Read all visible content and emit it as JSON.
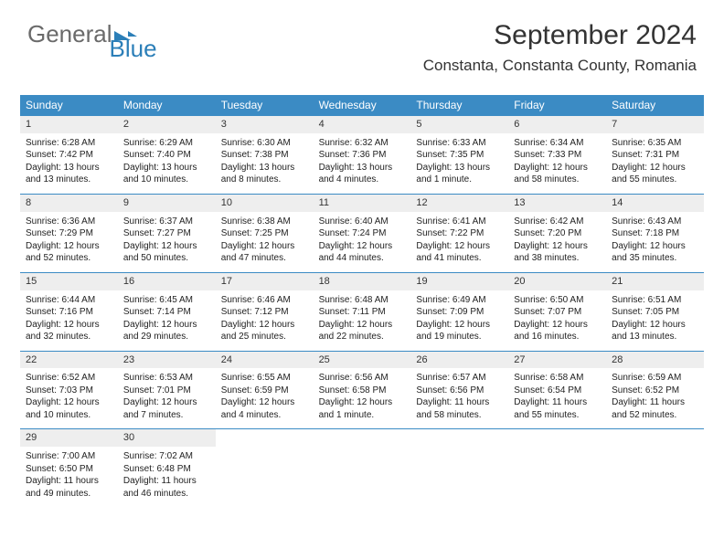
{
  "logo": {
    "text1": "General",
    "text2": "Blue"
  },
  "title": "September 2024",
  "location": "Constanta, Constanta County, Romania",
  "headers": [
    "Sunday",
    "Monday",
    "Tuesday",
    "Wednesday",
    "Thursday",
    "Friday",
    "Saturday"
  ],
  "header_bg": "#3b8bc4",
  "header_fg": "#ffffff",
  "daynum_bg": "#eeeeee",
  "week_border": "#3b8bc4",
  "days": [
    {
      "n": "1",
      "sunrise": "6:28 AM",
      "sunset": "7:42 PM",
      "daylight": "13 hours and 13 minutes."
    },
    {
      "n": "2",
      "sunrise": "6:29 AM",
      "sunset": "7:40 PM",
      "daylight": "13 hours and 10 minutes."
    },
    {
      "n": "3",
      "sunrise": "6:30 AM",
      "sunset": "7:38 PM",
      "daylight": "13 hours and 8 minutes."
    },
    {
      "n": "4",
      "sunrise": "6:32 AM",
      "sunset": "7:36 PM",
      "daylight": "13 hours and 4 minutes."
    },
    {
      "n": "5",
      "sunrise": "6:33 AM",
      "sunset": "7:35 PM",
      "daylight": "13 hours and 1 minute."
    },
    {
      "n": "6",
      "sunrise": "6:34 AM",
      "sunset": "7:33 PM",
      "daylight": "12 hours and 58 minutes."
    },
    {
      "n": "7",
      "sunrise": "6:35 AM",
      "sunset": "7:31 PM",
      "daylight": "12 hours and 55 minutes."
    },
    {
      "n": "8",
      "sunrise": "6:36 AM",
      "sunset": "7:29 PM",
      "daylight": "12 hours and 52 minutes."
    },
    {
      "n": "9",
      "sunrise": "6:37 AM",
      "sunset": "7:27 PM",
      "daylight": "12 hours and 50 minutes."
    },
    {
      "n": "10",
      "sunrise": "6:38 AM",
      "sunset": "7:25 PM",
      "daylight": "12 hours and 47 minutes."
    },
    {
      "n": "11",
      "sunrise": "6:40 AM",
      "sunset": "7:24 PM",
      "daylight": "12 hours and 44 minutes."
    },
    {
      "n": "12",
      "sunrise": "6:41 AM",
      "sunset": "7:22 PM",
      "daylight": "12 hours and 41 minutes."
    },
    {
      "n": "13",
      "sunrise": "6:42 AM",
      "sunset": "7:20 PM",
      "daylight": "12 hours and 38 minutes."
    },
    {
      "n": "14",
      "sunrise": "6:43 AM",
      "sunset": "7:18 PM",
      "daylight": "12 hours and 35 minutes."
    },
    {
      "n": "15",
      "sunrise": "6:44 AM",
      "sunset": "7:16 PM",
      "daylight": "12 hours and 32 minutes."
    },
    {
      "n": "16",
      "sunrise": "6:45 AM",
      "sunset": "7:14 PM",
      "daylight": "12 hours and 29 minutes."
    },
    {
      "n": "17",
      "sunrise": "6:46 AM",
      "sunset": "7:12 PM",
      "daylight": "12 hours and 25 minutes."
    },
    {
      "n": "18",
      "sunrise": "6:48 AM",
      "sunset": "7:11 PM",
      "daylight": "12 hours and 22 minutes."
    },
    {
      "n": "19",
      "sunrise": "6:49 AM",
      "sunset": "7:09 PM",
      "daylight": "12 hours and 19 minutes."
    },
    {
      "n": "20",
      "sunrise": "6:50 AM",
      "sunset": "7:07 PM",
      "daylight": "12 hours and 16 minutes."
    },
    {
      "n": "21",
      "sunrise": "6:51 AM",
      "sunset": "7:05 PM",
      "daylight": "12 hours and 13 minutes."
    },
    {
      "n": "22",
      "sunrise": "6:52 AM",
      "sunset": "7:03 PM",
      "daylight": "12 hours and 10 minutes."
    },
    {
      "n": "23",
      "sunrise": "6:53 AM",
      "sunset": "7:01 PM",
      "daylight": "12 hours and 7 minutes."
    },
    {
      "n": "24",
      "sunrise": "6:55 AM",
      "sunset": "6:59 PM",
      "daylight": "12 hours and 4 minutes."
    },
    {
      "n": "25",
      "sunrise": "6:56 AM",
      "sunset": "6:58 PM",
      "daylight": "12 hours and 1 minute."
    },
    {
      "n": "26",
      "sunrise": "6:57 AM",
      "sunset": "6:56 PM",
      "daylight": "11 hours and 58 minutes."
    },
    {
      "n": "27",
      "sunrise": "6:58 AM",
      "sunset": "6:54 PM",
      "daylight": "11 hours and 55 minutes."
    },
    {
      "n": "28",
      "sunrise": "6:59 AM",
      "sunset": "6:52 PM",
      "daylight": "11 hours and 52 minutes."
    },
    {
      "n": "29",
      "sunrise": "7:00 AM",
      "sunset": "6:50 PM",
      "daylight": "11 hours and 49 minutes."
    },
    {
      "n": "30",
      "sunrise": "7:02 AM",
      "sunset": "6:48 PM",
      "daylight": "11 hours and 46 minutes."
    }
  ],
  "labels": {
    "sunrise": "Sunrise:",
    "sunset": "Sunset:",
    "daylight": "Daylight:"
  }
}
